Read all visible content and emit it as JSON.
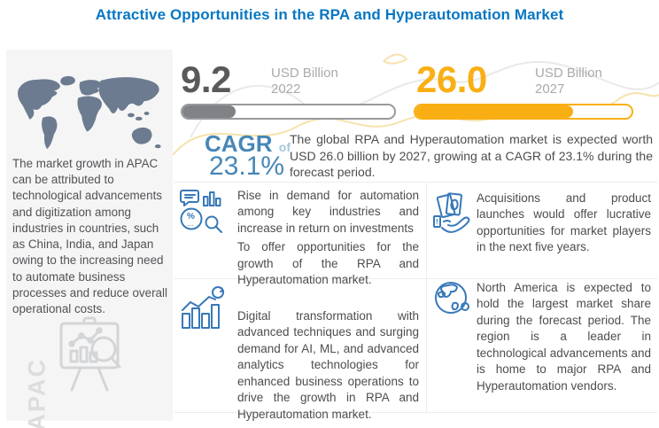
{
  "title": "Attractive Opportunities in the RPA and Hyperautomation Market",
  "colors": {
    "title_blue": "#0877C2",
    "value_gray": "#58595B",
    "muted_gray": "#A8AAAD",
    "bar_gray": "#808285",
    "accent_yellow": "#F9AF14",
    "cagr_blue": "#4787B7",
    "cagr_light_blue": "#A3C6DD",
    "icon_blue": "#3878B8",
    "body_text": "#4D4D4F",
    "panel_bg": "#F5F5F6",
    "map_gray": "#6C7B8F",
    "watermark_gray": "#DBDDDE"
  },
  "apac_panel": {
    "watermark": "APAC",
    "description": "The market growth in APAC can be attributed to technological advancements and digitization among industries in countries, such as China, India, and Japan owing to the increasing need to automate business processes and reduce overall operational costs."
  },
  "stats": {
    "current": {
      "value": "9.2",
      "unit": "USD Billion",
      "year": "2022",
      "bar_pct": 25
    },
    "forecast": {
      "value": "26.0",
      "unit": "USD Billion",
      "year": "2027",
      "bar_pct": 73
    }
  },
  "cagr": {
    "label": "CAGR",
    "of_word": "of",
    "value": "23.1%",
    "summary": "The global RPA and Hyperautomation market is expected worth USD 26.0 billion  by 2027, growing at a CAGR of 23.1% during the forecast period."
  },
  "insights": [
    {
      "icon": "analytics-percent-icon",
      "paragraphs": [
        "Rise in demand for automation among key industries and increase in return on investments",
        "To offer opportunities for the growth of the RPA and Hyperautomation market."
      ]
    },
    {
      "icon": "growth-chart-icon",
      "paragraphs": [
        "Digital transformation with advanced techniques and surging demand for AI, ML, and advanced analytics technologies for enhanced business operations to drive the growth in RPA and Hyperautomation market."
      ]
    },
    {
      "icon": "money-hand-icon",
      "paragraphs": [
        "Acquisitions and product launches would offer lucrative opportunities for market players in the next five years."
      ]
    },
    {
      "icon": "globe-icon",
      "paragraphs": [
        "North America is expected to hold the largest market share during the forecast period. The region is a leader in technological advancements and is home to major RPA and Hyperautomation vendors."
      ]
    }
  ],
  "chart_data": {
    "type": "bar",
    "title": "Attractive Opportunities in the RPA and Hyperautomation Market",
    "categories": [
      "2022",
      "2027"
    ],
    "values": [
      9.2,
      26.0
    ],
    "unit": "USD Billion",
    "cagr_pct": 23.1,
    "bar_fill_pct": [
      25,
      73
    ],
    "series_colors": [
      "#808285",
      "#F9AF14"
    ]
  }
}
